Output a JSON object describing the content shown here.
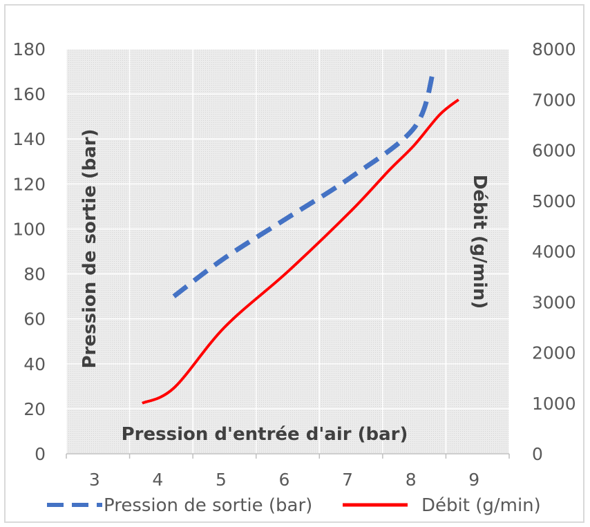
{
  "chart_data": {
    "type": "line",
    "title": "",
    "xlabel": "Pression d'entrée d'air (bar)",
    "ylabel": "Pression de sortie (bar)",
    "y2label": "Débit (g/min)",
    "xlim": [
      3,
      9
    ],
    "ylim": [
      0,
      180
    ],
    "y2lim": [
      0,
      8000
    ],
    "x_ticks": [
      "3",
      "4",
      "5",
      "6",
      "7",
      "8",
      "9"
    ],
    "y_ticks": [
      "0",
      "20",
      "40",
      "60",
      "80",
      "100",
      "120",
      "140",
      "160",
      "180"
    ],
    "y2_ticks": [
      "0",
      "1000",
      "2000",
      "3000",
      "4000",
      "5000",
      "6000",
      "7000",
      "8000"
    ],
    "grid": true,
    "legend_position": "bottom",
    "series": [
      {
        "name": "Pression de sortie (bar)",
        "axis": "left",
        "color": "#4472c4",
        "style": "dashed",
        "x": [
          4.2,
          5,
          6,
          7,
          8,
          8.3
        ],
        "y": [
          70,
          87,
          105,
          123,
          145,
          170
        ]
      },
      {
        "name": "Débit (g/min)",
        "axis": "right",
        "color": "#ff0000",
        "style": "solid",
        "x": [
          3.7,
          4.2,
          5,
          6,
          7,
          7.6,
          8,
          8.4,
          8.7
        ],
        "y": [
          1000,
          1300,
          2500,
          3600,
          4800,
          5600,
          6100,
          6700,
          7000
        ]
      }
    ]
  }
}
